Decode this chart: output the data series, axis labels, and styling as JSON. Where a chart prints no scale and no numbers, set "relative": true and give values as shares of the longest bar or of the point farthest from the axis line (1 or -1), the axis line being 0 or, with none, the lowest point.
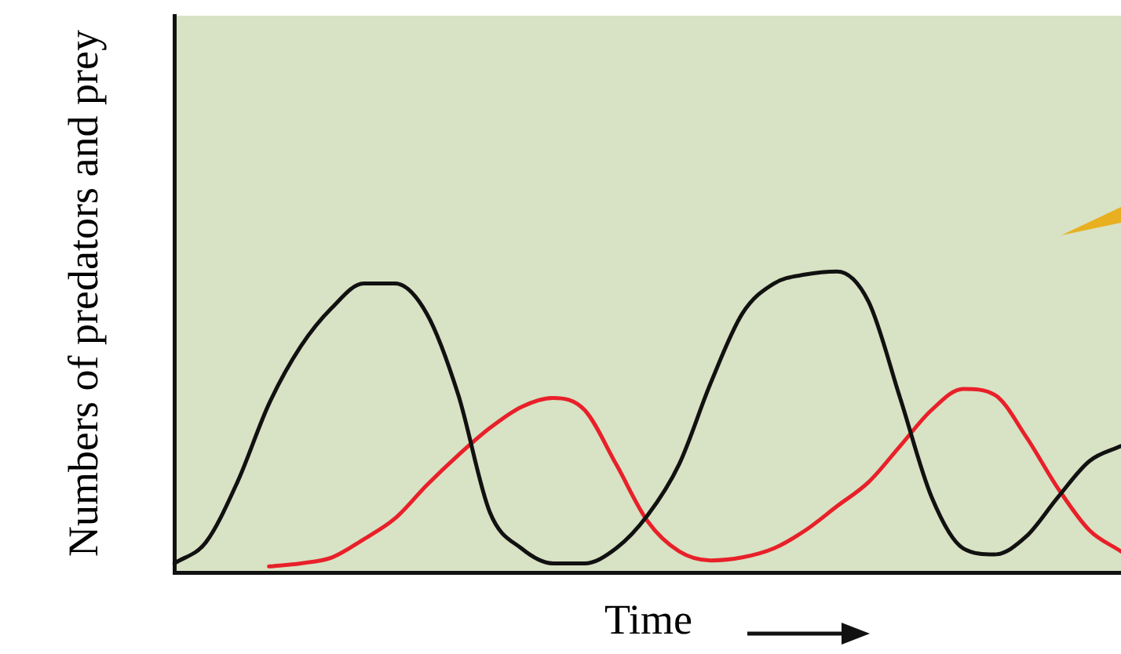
{
  "chart_data": {
    "type": "line",
    "relative": true,
    "xlabel": "Time",
    "ylabel": "Numbers of predators and prey",
    "categories": [
      null,
      null,
      null,
      null,
      null,
      null,
      null,
      null,
      null,
      null,
      null,
      null,
      null,
      null,
      null,
      null,
      null,
      null,
      null,
      null,
      null,
      null,
      null,
      null,
      null,
      null,
      null,
      null,
      null,
      null,
      null
    ],
    "series": [
      {
        "color": "#111111",
        "values": [
          0.03,
          0.1,
          0.3,
          0.56,
          0.75,
          0.88,
          0.96,
          0.96,
          0.86,
          0.59,
          0.2,
          0.08,
          0.03,
          0.03,
          0.08,
          0.19,
          0.36,
          0.63,
          0.86,
          0.96,
          0.99,
          1.0,
          0.9,
          0.58,
          0.25,
          0.08,
          0.06,
          0.12,
          0.25,
          0.37,
          0.42
        ]
      },
      {
        "color": "#e8202a",
        "values": [
          null,
          null,
          null,
          0.02,
          0.03,
          0.05,
          0.11,
          0.18,
          0.29,
          0.39,
          0.48,
          0.55,
          0.58,
          0.54,
          0.36,
          0.17,
          0.07,
          0.04,
          0.05,
          0.08,
          0.14,
          0.22,
          0.3,
          0.42,
          0.54,
          0.61,
          0.59,
          0.45,
          0.28,
          0.14,
          0.07
        ]
      }
    ],
    "grid": false,
    "legend": false,
    "marker": "none",
    "line_style": "solid"
  }
}
